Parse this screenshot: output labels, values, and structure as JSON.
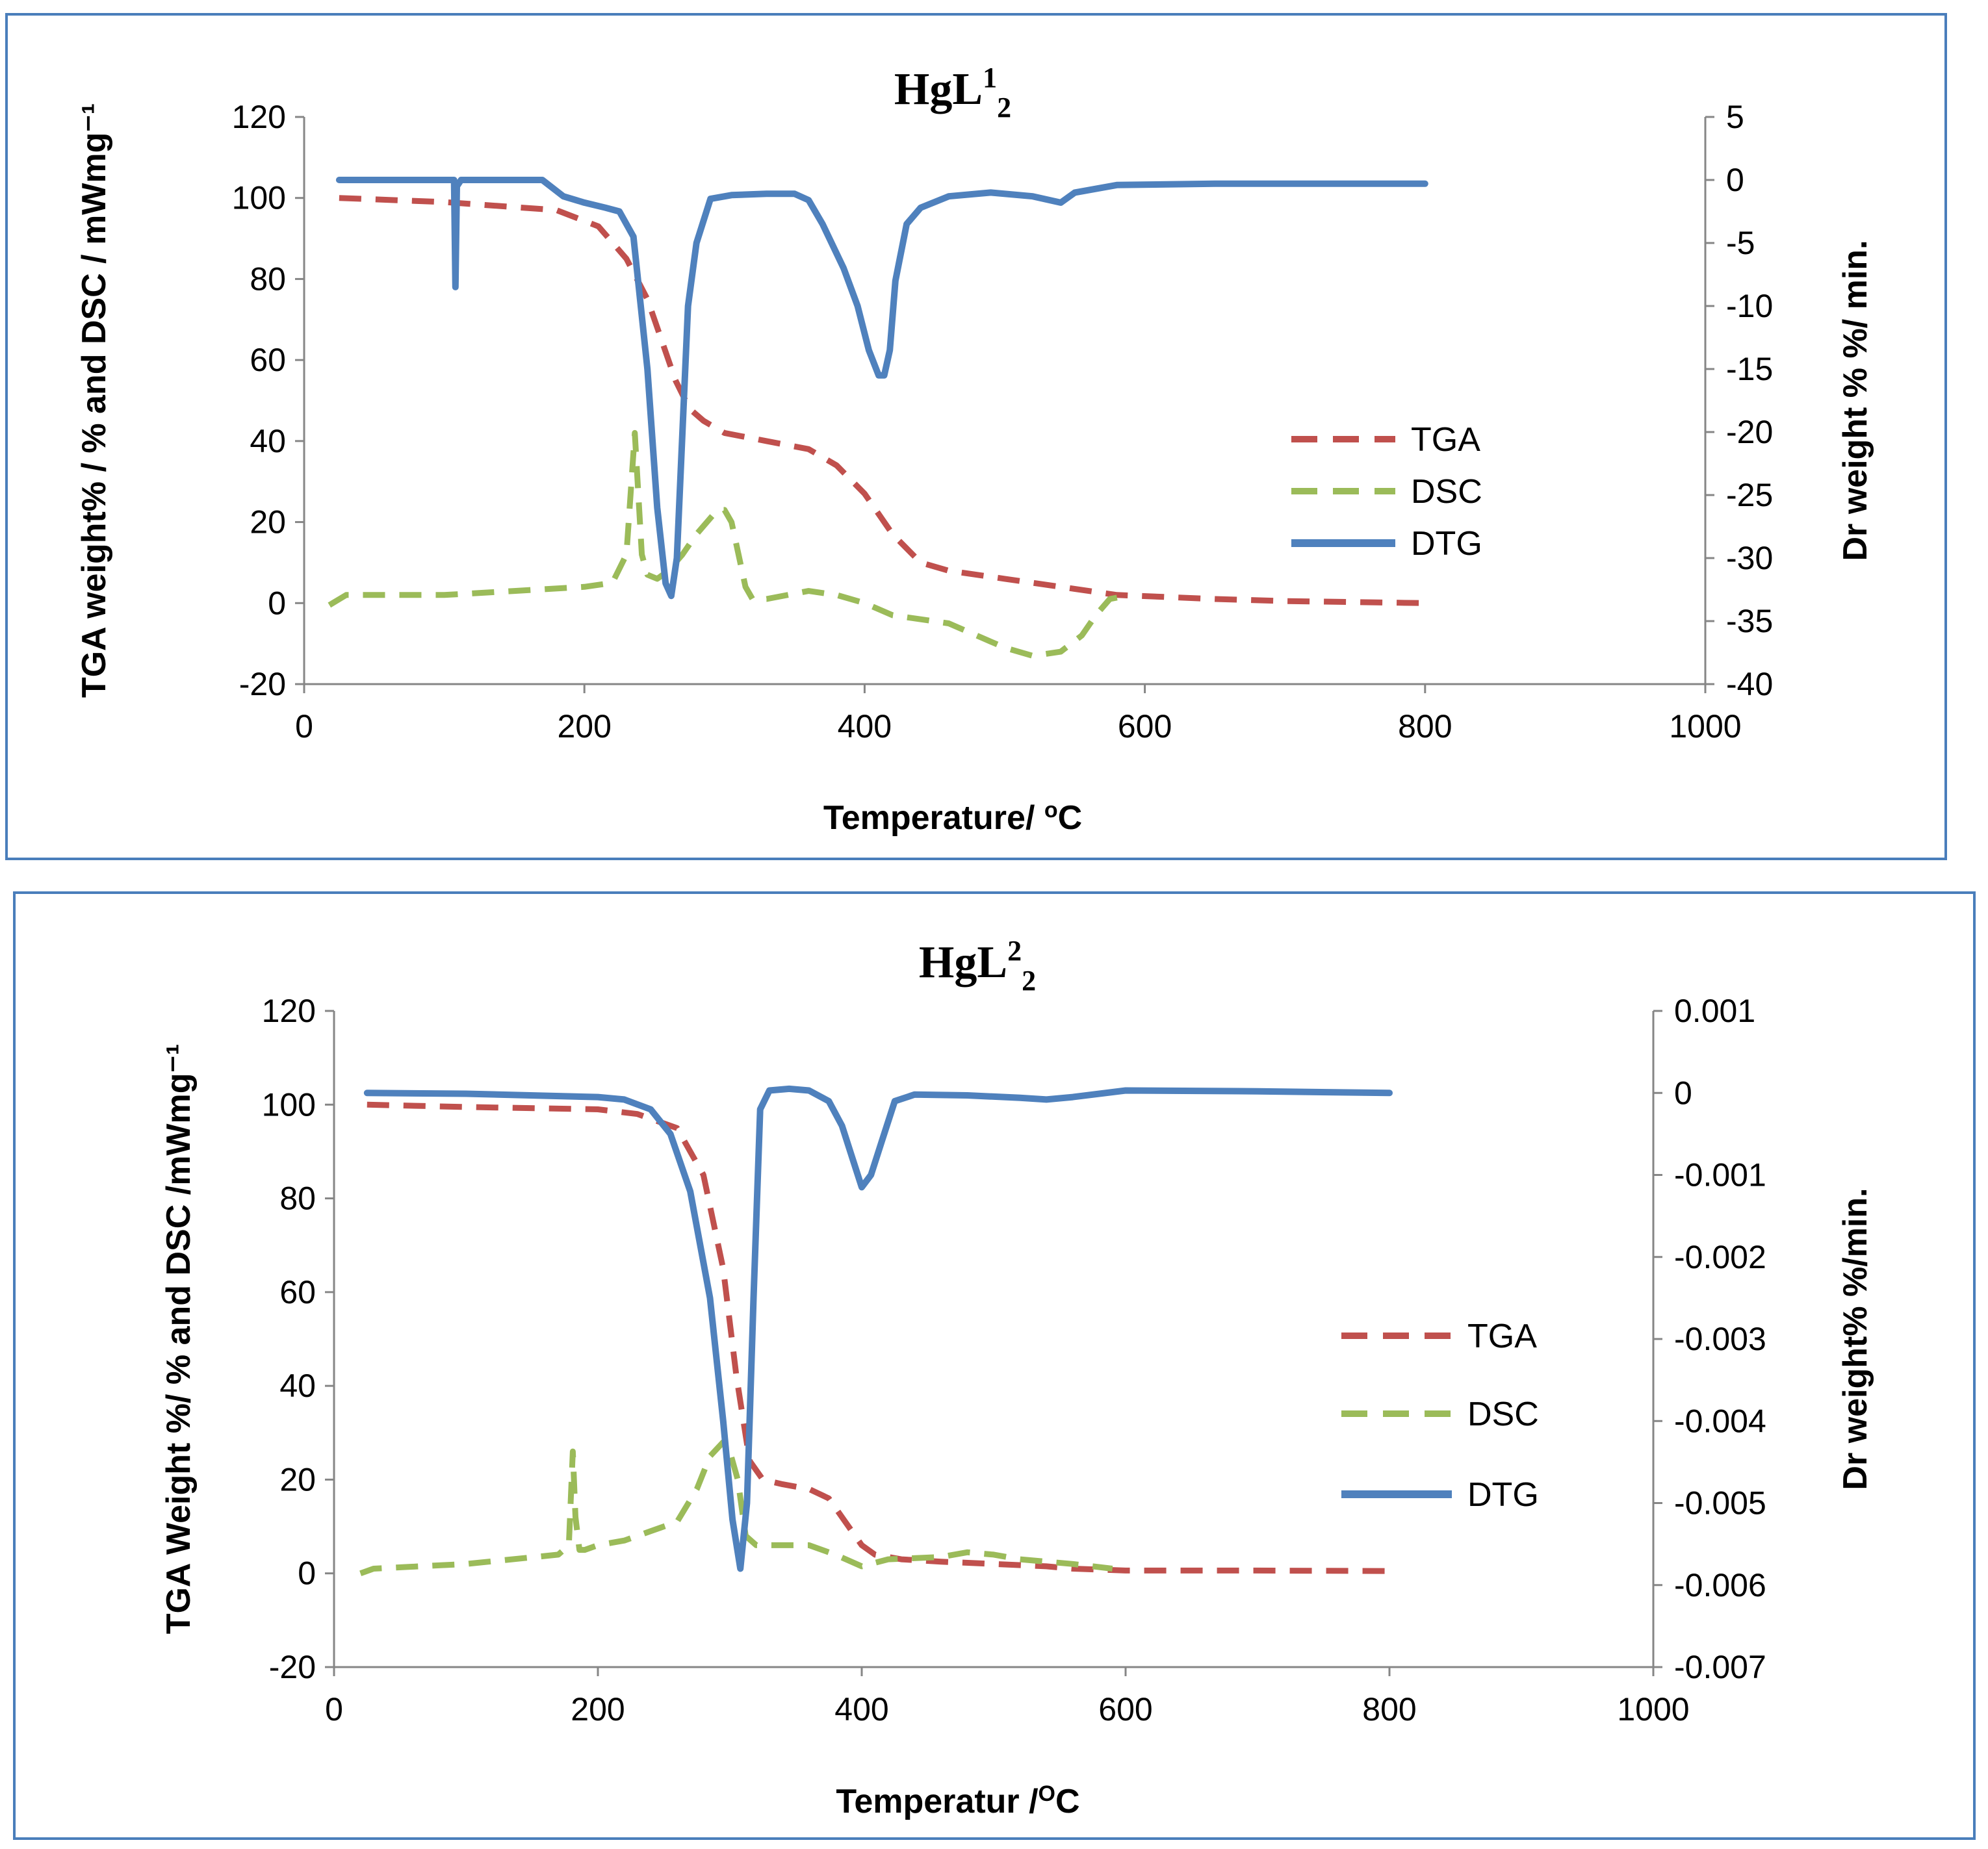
{
  "chart_data": [
    {
      "type": "line",
      "title": {
        "base": "HgL",
        "sup": "1",
        "sub": "2"
      },
      "xlabel": {
        "text": "Temperature/ ",
        "sup": "o",
        "tail": "C"
      },
      "ylabel": "TGA weight% / %  and  DSC / mWmg⁻¹",
      "y2label": "Dr weight %  %/ min.",
      "xlim": [
        0,
        1000
      ],
      "xticks": [
        "0",
        "200",
        "400",
        "600",
        "800",
        "1000"
      ],
      "ylim": [
        -20,
        120
      ],
      "yticks": [
        "120",
        "100",
        "80",
        "60",
        "40",
        "20",
        "0",
        "-20"
      ],
      "y2lim": [
        -40,
        5
      ],
      "y2ticks": [
        "5",
        "0",
        "-5",
        "-10",
        "-15",
        "-20",
        "-25",
        "-30",
        "-35",
        "-40"
      ],
      "series": [
        {
          "name": "TGA",
          "axis": "left",
          "color": "#c0504d",
          "dash": true,
          "x": [
            25,
            100,
            180,
            210,
            230,
            245,
            255,
            265,
            275,
            285,
            300,
            330,
            360,
            380,
            400,
            420,
            440,
            460,
            500,
            540,
            580,
            650,
            700,
            800
          ],
          "y": [
            100,
            99,
            97,
            93,
            85,
            75,
            65,
            55,
            48,
            45,
            42,
            40,
            38,
            34,
            27,
            17,
            10,
            8,
            6,
            4,
            2,
            1,
            0.5,
            0
          ]
        },
        {
          "name": "DSC",
          "axis": "left",
          "color": "#9bbb59",
          "dash": true,
          "x": [
            18,
            30,
            100,
            150,
            200,
            220,
            230,
            236,
            238,
            241,
            245,
            252,
            260,
            270,
            280,
            290,
            295,
            300,
            305,
            310,
            315,
            320,
            330,
            360,
            380,
            400,
            420,
            440,
            460,
            480,
            500,
            520,
            540,
            555,
            565,
            575,
            590
          ],
          "y": [
            -0.5,
            2,
            2,
            3,
            4,
            5,
            12,
            42,
            30,
            12,
            7,
            6,
            8,
            12,
            17,
            21,
            23,
            23,
            20,
            12,
            4,
            1,
            1,
            3,
            2,
            0,
            -3,
            -4,
            -5,
            -8,
            -11,
            -13,
            -12,
            -8,
            -3,
            1,
            2
          ]
        },
        {
          "name": "DTG",
          "axis": "right",
          "color": "#4f81bd",
          "dash": false,
          "x": [
            25,
            100,
            107,
            108,
            109,
            112,
            170,
            185,
            200,
            215,
            225,
            235,
            245,
            252,
            258,
            262,
            266,
            270,
            274,
            280,
            290,
            305,
            330,
            350,
            360,
            370,
            385,
            395,
            403,
            410,
            414,
            418,
            422,
            430,
            440,
            460,
            490,
            520,
            540,
            550,
            580,
            650,
            700,
            800
          ],
          "y": [
            0,
            0,
            0,
            -8.5,
            -0.5,
            0,
            0,
            -1.3,
            -1.8,
            -2.2,
            -2.5,
            -4.5,
            -15,
            -26,
            -32,
            -33,
            -30,
            -20,
            -10,
            -5,
            -1.5,
            -1.2,
            -1.1,
            -1.1,
            -1.6,
            -3.5,
            -7,
            -10,
            -13.5,
            -15.5,
            -15.5,
            -13.5,
            -8,
            -3.5,
            -2.2,
            -1.3,
            -1,
            -1.3,
            -1.8,
            -1,
            -0.4,
            -0.3,
            -0.3,
            -0.3
          ]
        }
      ],
      "legend": {
        "position": "center-right",
        "entries": [
          "TGA",
          "DSC",
          "DTG"
        ]
      }
    },
    {
      "type": "line",
      "title": {
        "base": "HgL",
        "sup": "2",
        "sub": "2"
      },
      "xlabel": {
        "text": "Temperatur /",
        "sup": "O",
        "tail": "C"
      },
      "ylabel": "TGA Weight %/ % and  DSC   /mWmg⁻¹",
      "y2label": "Dr weight% %/min.",
      "xlim": [
        0,
        1000
      ],
      "xticks": [
        "0",
        "200",
        "400",
        "600",
        "800",
        "1000"
      ],
      "ylim": [
        -20,
        120
      ],
      "yticks": [
        "120",
        "100",
        "80",
        "60",
        "40",
        "20",
        "0",
        "-20"
      ],
      "y2lim": [
        -0.007,
        0.001
      ],
      "y2ticks": [
        "0.001",
        "0",
        "-0.001",
        "-0.002",
        "-0.003",
        "-0.004",
        "-0.005",
        "-0.006",
        "-0.007"
      ],
      "series": [
        {
          "name": "TGA",
          "axis": "left",
          "color": "#c0504d",
          "dash": true,
          "x": [
            25,
            100,
            200,
            230,
            260,
            280,
            295,
            305,
            315,
            325,
            340,
            360,
            375,
            390,
            400,
            410,
            430,
            460,
            500,
            540,
            560,
            580,
            600,
            700,
            800
          ],
          "y": [
            100,
            99.5,
            99,
            98,
            95,
            85,
            65,
            42,
            24,
            20,
            19,
            18,
            16,
            10,
            6,
            4,
            3,
            2.5,
            2,
            1.5,
            1,
            0.8,
            0.6,
            0.6,
            0.5
          ]
        },
        {
          "name": "DSC",
          "axis": "left",
          "color": "#9bbb59",
          "dash": true,
          "x": [
            20,
            30,
            100,
            170,
            178,
            181,
            183,
            186,
            190,
            200,
            220,
            240,
            260,
            275,
            285,
            295,
            300,
            306,
            312,
            320,
            340,
            360,
            380,
            400,
            420,
            460,
            480,
            500,
            520,
            560,
            590
          ],
          "y": [
            0,
            1,
            2,
            4,
            6,
            26,
            12,
            5,
            5,
            6,
            7,
            9,
            11,
            18,
            25,
            28,
            26,
            20,
            8,
            6,
            6,
            6,
            4,
            1.5,
            3,
            3.5,
            4.5,
            4,
            3,
            2,
            1
          ]
        },
        {
          "name": "DTG",
          "axis": "right",
          "color": "#4f81bd",
          "dash": false,
          "x": [
            25,
            100,
            200,
            220,
            240,
            255,
            270,
            285,
            295,
            302,
            308,
            313,
            318,
            323,
            330,
            345,
            360,
            375,
            385,
            393,
            400,
            407,
            415,
            425,
            440,
            480,
            520,
            540,
            560,
            600,
            700,
            800
          ],
          "y": [
            0,
            -1e-05,
            -5e-05,
            -8e-05,
            -0.0002,
            -0.0005,
            -0.0012,
            -0.0025,
            -0.004,
            -0.0052,
            -0.0058,
            -0.005,
            -0.0025,
            -0.0002,
            3e-05,
            5e-05,
            3e-05,
            -0.0001,
            -0.0004,
            -0.0008,
            -0.00115,
            -0.001,
            -0.0006,
            -0.0001,
            -2e-05,
            -3e-05,
            -6e-05,
            -8e-05,
            -5e-05,
            3e-05,
            2e-05,
            0
          ]
        }
      ],
      "legend": {
        "position": "center-right",
        "entries": [
          "TGA",
          "DSC",
          "DTG"
        ]
      }
    }
  ]
}
